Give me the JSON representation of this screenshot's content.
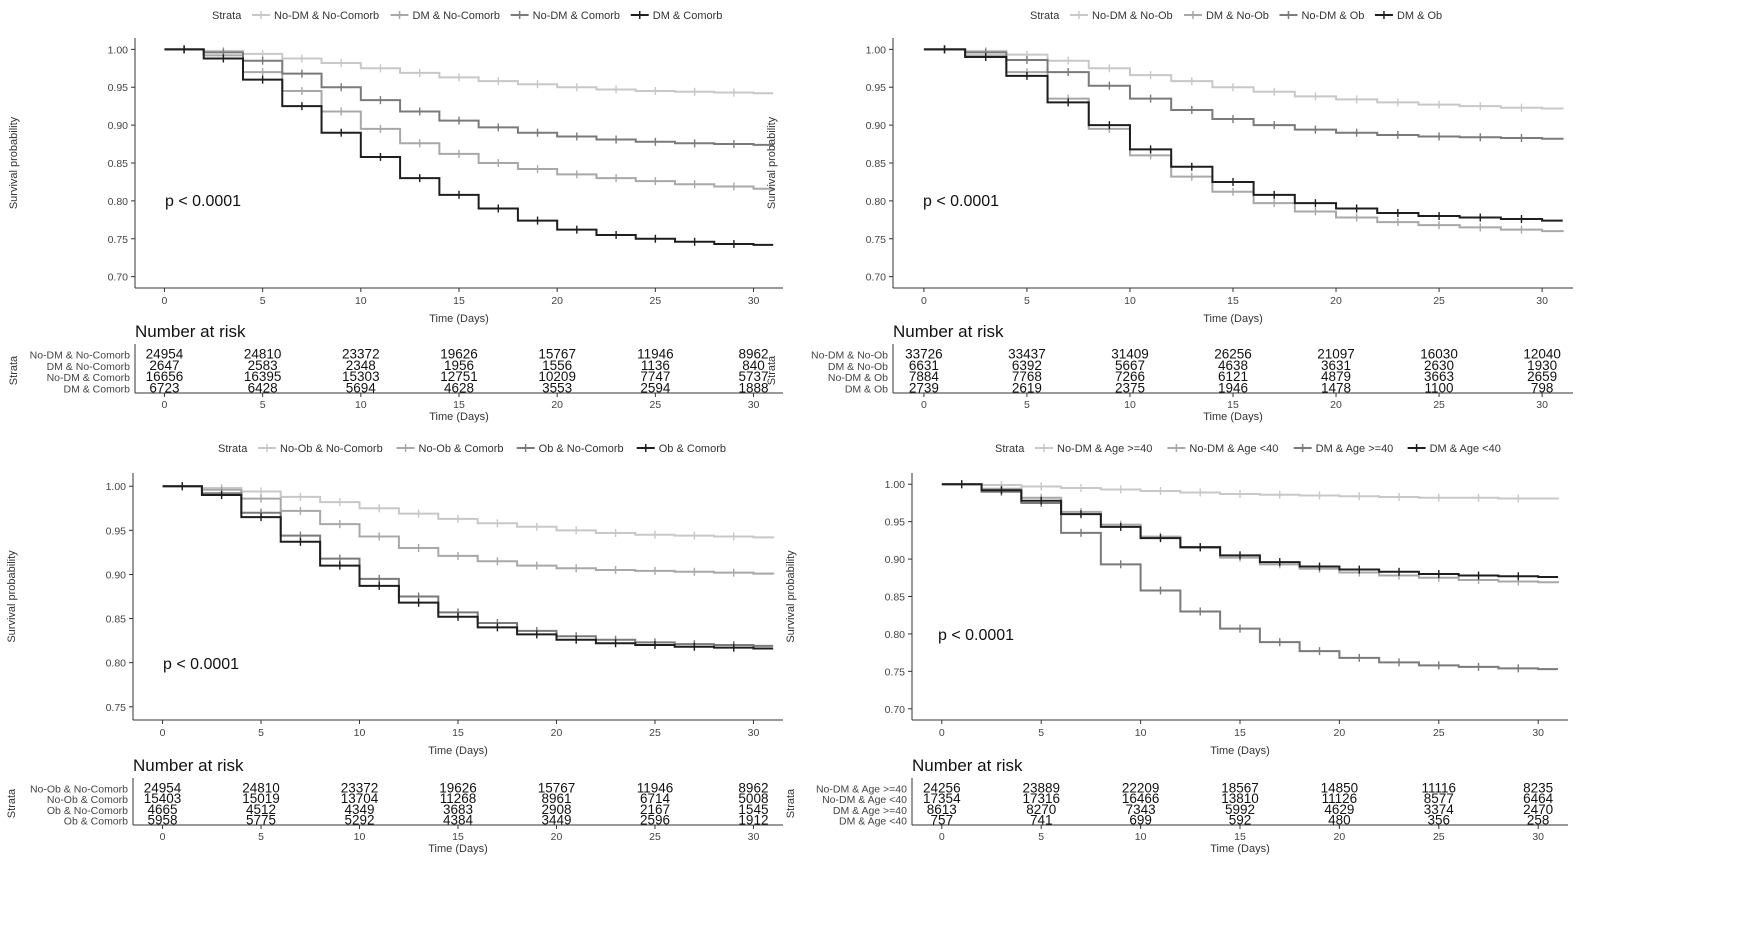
{
  "common": {
    "strata_word": "Strata",
    "y_axis_label": "Survival probability",
    "x_axis_label": "Time (Days)",
    "risk_title": "Number at risk",
    "risk_y_label": "Strata",
    "p_value": "p < 0.0001",
    "x_ticks": [
      0,
      5,
      10,
      15,
      20,
      25,
      30
    ],
    "line_colors": [
      "#c8c8c8",
      "#a8a8a8",
      "#7a7a7a",
      "#1e1e1e"
    ]
  },
  "chart_data": [
    {
      "type": "line",
      "xlabel": "Time (Days)",
      "ylabel": "Survival probability",
      "xlim": [
        -1.5,
        31.5
      ],
      "ylim": [
        0.685,
        1.015
      ],
      "yticks": [
        "1.00",
        "0.95",
        "0.90",
        "0.85",
        "0.80",
        "0.75",
        "0.70"
      ],
      "ytick_values": [
        1.0,
        0.95,
        0.9,
        0.85,
        0.8,
        0.75,
        0.7
      ],
      "legend_position": "top",
      "x": [
        0,
        2,
        4,
        6,
        8,
        10,
        12,
        14,
        16,
        18,
        20,
        22,
        24,
        26,
        28,
        30,
        31
      ],
      "series": [
        {
          "name": "No-DM & No-Comorb",
          "values": [
            1.0,
            0.998,
            0.994,
            0.988,
            0.982,
            0.975,
            0.969,
            0.963,
            0.958,
            0.954,
            0.95,
            0.947,
            0.945,
            0.944,
            0.943,
            0.942,
            0.942
          ]
        },
        {
          "name": "DM & No-Comorb",
          "values": [
            1.0,
            0.992,
            0.97,
            0.945,
            0.918,
            0.895,
            0.876,
            0.862,
            0.85,
            0.842,
            0.835,
            0.83,
            0.826,
            0.822,
            0.819,
            0.816,
            0.815
          ]
        },
        {
          "name": "No-DM & Comorb",
          "values": [
            1.0,
            0.996,
            0.985,
            0.968,
            0.95,
            0.933,
            0.918,
            0.906,
            0.897,
            0.89,
            0.885,
            0.881,
            0.878,
            0.876,
            0.875,
            0.874,
            0.873
          ]
        },
        {
          "name": "DM & Comorb",
          "values": [
            1.0,
            0.988,
            0.96,
            0.925,
            0.89,
            0.858,
            0.83,
            0.808,
            0.79,
            0.774,
            0.762,
            0.755,
            0.75,
            0.746,
            0.743,
            0.742,
            0.742
          ]
        }
      ],
      "censor_every": 1,
      "risk_table": {
        "row_labels": [
          "No-DM & No-Comorb",
          "DM & No-Comorb",
          "No-DM & Comorb",
          "DM & Comorb"
        ],
        "times": [
          0,
          5,
          10,
          15,
          20,
          25,
          30
        ],
        "rows": [
          [
            "24954",
            "24810",
            "23372",
            "19626",
            "15767",
            "11946",
            "8962"
          ],
          [
            "2647",
            "2583",
            "2348",
            "1956",
            "1556",
            "1136",
            "840"
          ],
          [
            "16656",
            "16395",
            "15303",
            "12751",
            "10209",
            "7747",
            "5737"
          ],
          [
            "6723",
            "6428",
            "5694",
            "4628",
            "3553",
            "2594",
            "1888"
          ]
        ]
      }
    },
    {
      "type": "line",
      "xlabel": "Time (Days)",
      "ylabel": "Survival probability",
      "xlim": [
        -1.5,
        31.5
      ],
      "ylim": [
        0.685,
        1.015
      ],
      "yticks": [
        "1.00",
        "0.95",
        "0.90",
        "0.85",
        "0.80",
        "0.75",
        "0.70"
      ],
      "ytick_values": [
        1.0,
        0.95,
        0.9,
        0.85,
        0.8,
        0.75,
        0.7
      ],
      "legend_position": "top",
      "x": [
        0,
        2,
        4,
        6,
        8,
        10,
        12,
        14,
        16,
        18,
        20,
        22,
        24,
        26,
        28,
        30,
        31
      ],
      "series": [
        {
          "name": "No-DM & No-Ob",
          "values": [
            1.0,
            0.998,
            0.993,
            0.985,
            0.975,
            0.966,
            0.958,
            0.95,
            0.944,
            0.938,
            0.934,
            0.93,
            0.927,
            0.925,
            0.923,
            0.922,
            0.921
          ]
        },
        {
          "name": "DM & No-Ob",
          "values": [
            1.0,
            0.992,
            0.97,
            0.935,
            0.895,
            0.86,
            0.832,
            0.812,
            0.797,
            0.786,
            0.778,
            0.772,
            0.768,
            0.765,
            0.762,
            0.76,
            0.759
          ]
        },
        {
          "name": "No-DM & Ob",
          "values": [
            1.0,
            0.996,
            0.986,
            0.97,
            0.952,
            0.935,
            0.92,
            0.908,
            0.9,
            0.894,
            0.89,
            0.887,
            0.885,
            0.884,
            0.883,
            0.882,
            0.881
          ]
        },
        {
          "name": "DM & Ob",
          "values": [
            1.0,
            0.99,
            0.965,
            0.93,
            0.9,
            0.868,
            0.845,
            0.825,
            0.808,
            0.797,
            0.79,
            0.784,
            0.78,
            0.778,
            0.776,
            0.774,
            0.774
          ]
        }
      ],
      "censor_every": 1,
      "risk_table": {
        "row_labels": [
          "No-DM & No-Ob",
          "DM & No-Ob",
          "No-DM & Ob",
          "DM & Ob"
        ],
        "times": [
          0,
          5,
          10,
          15,
          20,
          25,
          30
        ],
        "rows": [
          [
            "33726",
            "33437",
            "31409",
            "26256",
            "21097",
            "16030",
            "12040"
          ],
          [
            "6631",
            "6392",
            "5667",
            "4638",
            "3631",
            "2630",
            "1930"
          ],
          [
            "7884",
            "7768",
            "7266",
            "6121",
            "4879",
            "3663",
            "2659"
          ],
          [
            "2739",
            "2619",
            "2375",
            "1946",
            "1478",
            "1100",
            "798"
          ]
        ]
      }
    },
    {
      "type": "line",
      "xlabel": "Time (Days)",
      "ylabel": "Survival probability",
      "xlim": [
        -1.5,
        31.5
      ],
      "ylim": [
        0.735,
        1.015
      ],
      "yticks": [
        "1.00",
        "0.95",
        "0.90",
        "0.85",
        "0.80",
        "0.75"
      ],
      "ytick_values": [
        1.0,
        0.95,
        0.9,
        0.85,
        0.8,
        0.75
      ],
      "legend_position": "top",
      "x": [
        0,
        2,
        4,
        6,
        8,
        10,
        12,
        14,
        16,
        18,
        20,
        22,
        24,
        26,
        28,
        30,
        31
      ],
      "series": [
        {
          "name": "No-Ob & No-Comorb",
          "values": [
            1.0,
            0.998,
            0.994,
            0.988,
            0.982,
            0.975,
            0.969,
            0.963,
            0.958,
            0.954,
            0.95,
            0.947,
            0.945,
            0.944,
            0.943,
            0.942,
            0.941
          ]
        },
        {
          "name": "No-Ob & Comorb",
          "values": [
            1.0,
            0.996,
            0.986,
            0.972,
            0.957,
            0.943,
            0.93,
            0.921,
            0.915,
            0.91,
            0.907,
            0.905,
            0.904,
            0.903,
            0.902,
            0.901,
            0.9
          ]
        },
        {
          "name": "Ob & No-Comorb",
          "values": [
            1.0,
            0.992,
            0.97,
            0.944,
            0.918,
            0.895,
            0.875,
            0.857,
            0.845,
            0.836,
            0.83,
            0.826,
            0.823,
            0.821,
            0.82,
            0.819,
            0.819
          ]
        },
        {
          "name": "Ob & Comorb",
          "values": [
            1.0,
            0.99,
            0.965,
            0.937,
            0.91,
            0.887,
            0.868,
            0.852,
            0.84,
            0.832,
            0.826,
            0.822,
            0.82,
            0.818,
            0.817,
            0.816,
            0.816
          ]
        }
      ],
      "censor_every": 1,
      "risk_table": {
        "row_labels": [
          "No-Ob & No-Comorb",
          "No-Ob & Comorb",
          "Ob & No-Comorb",
          "Ob & Comorb"
        ],
        "times": [
          0,
          5,
          10,
          15,
          20,
          25,
          30
        ],
        "rows": [
          [
            "24954",
            "24810",
            "23372",
            "19626",
            "15767",
            "11946",
            "8962"
          ],
          [
            "15403",
            "15019",
            "13704",
            "11268",
            "8961",
            "6714",
            "5008"
          ],
          [
            "4665",
            "4512",
            "4349",
            "3683",
            "2908",
            "2167",
            "1545"
          ],
          [
            "5958",
            "5775",
            "5292",
            "4384",
            "3449",
            "2596",
            "1912"
          ]
        ]
      }
    },
    {
      "type": "line",
      "xlabel": "Time (Days)",
      "ylabel": "Survival probability",
      "xlim": [
        -1.5,
        31.5
      ],
      "ylim": [
        0.685,
        1.015
      ],
      "yticks": [
        "1.00",
        "0.95",
        "0.90",
        "0.85",
        "0.80",
        "0.75",
        "0.70"
      ],
      "ytick_values": [
        1.0,
        0.95,
        0.9,
        0.85,
        0.8,
        0.75,
        0.7
      ],
      "legend_position": "top",
      "x": [
        0,
        2,
        4,
        6,
        8,
        10,
        12,
        14,
        16,
        18,
        20,
        22,
        24,
        26,
        28,
        30,
        31
      ],
      "series": [
        {
          "name": "No-DM & Age >=40",
          "values": [
            1.0,
            0.999,
            0.997,
            0.995,
            0.993,
            0.991,
            0.989,
            0.987,
            0.986,
            0.985,
            0.984,
            0.983,
            0.982,
            0.982,
            0.981,
            0.981,
            0.98
          ]
        },
        {
          "name": "No-DM & Age <40",
          "values": [
            1.0,
            0.994,
            0.982,
            0.963,
            0.946,
            0.93,
            0.915,
            0.902,
            0.893,
            0.887,
            0.882,
            0.878,
            0.875,
            0.872,
            0.87,
            0.869,
            0.868
          ]
        },
        {
          "name": "DM & Age >=40",
          "values": [
            1.0,
            0.99,
            0.975,
            0.935,
            0.893,
            0.858,
            0.83,
            0.807,
            0.789,
            0.777,
            0.768,
            0.762,
            0.758,
            0.756,
            0.754,
            0.753,
            0.753
          ]
        },
        {
          "name": "DM & Age <40",
          "values": [
            1.0,
            0.992,
            0.978,
            0.96,
            0.943,
            0.928,
            0.916,
            0.905,
            0.896,
            0.89,
            0.886,
            0.883,
            0.88,
            0.878,
            0.877,
            0.876,
            0.876
          ]
        }
      ],
      "censor_every": 1,
      "risk_table": {
        "row_labels": [
          "No-DM & Age >=40",
          "No-DM & Age <40",
          "DM & Age >=40",
          "DM & Age <40"
        ],
        "times": [
          0,
          5,
          10,
          15,
          20,
          25,
          30
        ],
        "rows": [
          [
            "24256",
            "23889",
            "22209",
            "18567",
            "14850",
            "11116",
            "8235"
          ],
          [
            "17354",
            "17316",
            "16466",
            "13810",
            "11126",
            "8577",
            "6464"
          ],
          [
            "8613",
            "8270",
            "7343",
            "5992",
            "4629",
            "3374",
            "2470"
          ],
          [
            "757",
            "741",
            "699",
            "592",
            "480",
            "356",
            "258"
          ]
        ]
      }
    }
  ]
}
